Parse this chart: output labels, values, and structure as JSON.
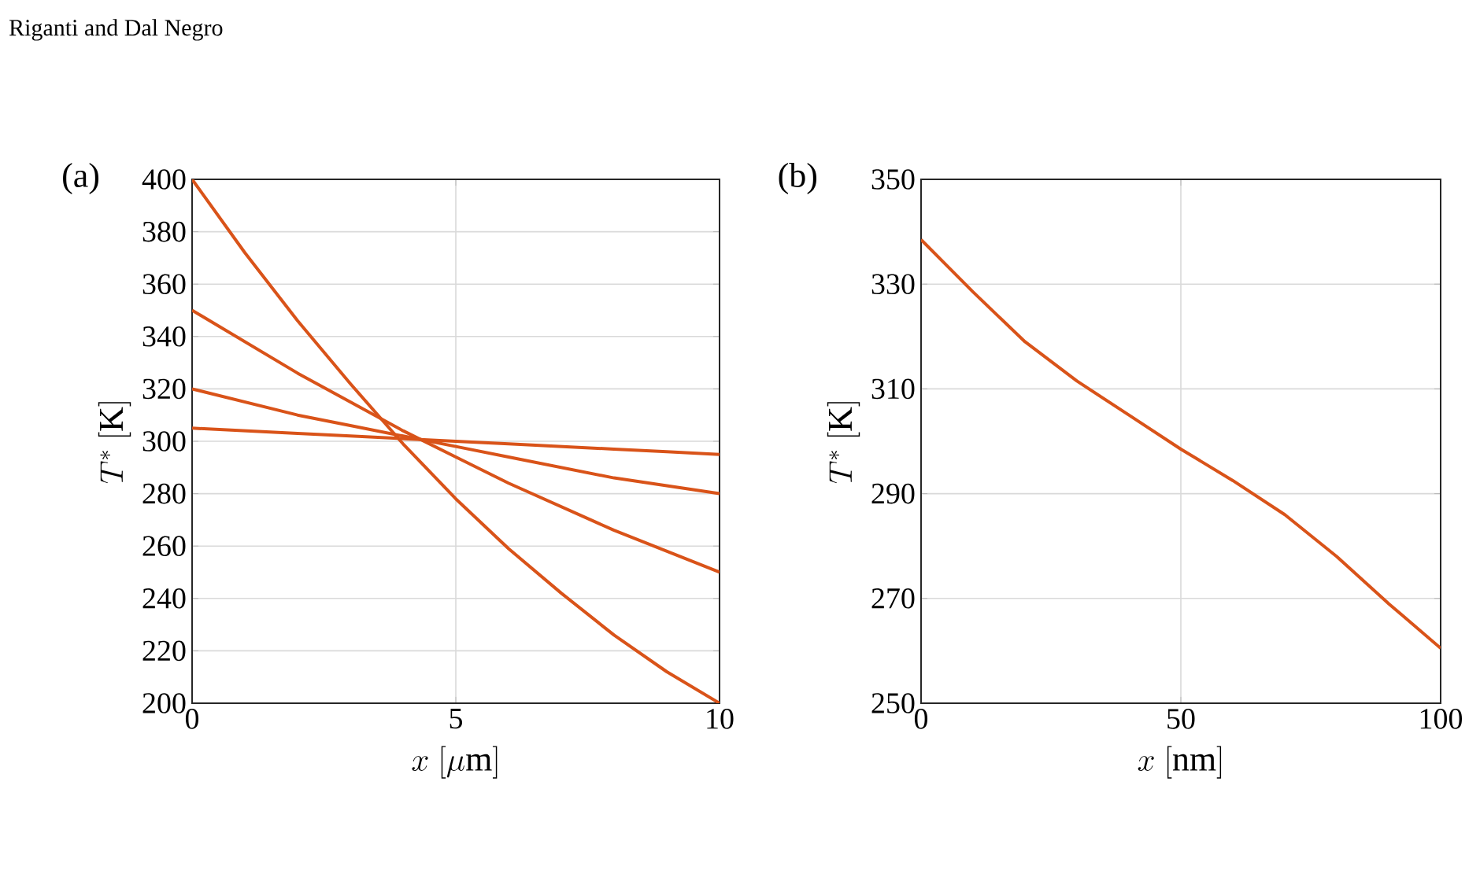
{
  "chart_data": [
    {
      "type": "line",
      "title": "(a)",
      "xlabel": "x\\ [\\mu\\mathrm{m}]",
      "ylabel": "T^{*}\\ [\\mathrm{K}]",
      "annotations": [
        "Riganti and Dal Negro"
      ],
      "x": [
        0,
        1,
        2,
        3,
        4,
        5,
        6,
        7,
        8,
        9,
        10
      ],
      "series": [
        {
          "color": "#d95319",
          "values": [
            400,
            372,
            346,
            322,
            299,
            278,
            259,
            242,
            226,
            212,
            200
          ]
        },
        {
          "color": "#d95319",
          "values": [
            350,
            338,
            326,
            315,
            304,
            294,
            284,
            275,
            266,
            258,
            250
          ]
        },
        {
          "color": "#d95319",
          "values": [
            320,
            315,
            310,
            306,
            302,
            298,
            294,
            290,
            286,
            283,
            280
          ]
        },
        {
          "color": "#d95319",
          "values": [
            305,
            304,
            303,
            302,
            301,
            300,
            299,
            298,
            297,
            296,
            295
          ]
        }
      ],
      "xlim": [
        0,
        10
      ],
      "xticks": [
        0,
        5,
        10
      ],
      "ylim": [
        200,
        400
      ],
      "yticks": [
        200,
        220,
        240,
        260,
        280,
        300,
        320,
        340,
        360,
        380,
        400
      ],
      "grid": true,
      "line_style": "solid"
    },
    {
      "type": "line",
      "title": "(b)",
      "xlabel": "x\\ [\\mathrm{nm}]",
      "ylabel": "T^{*}\\ [\\mathrm{K}]",
      "x": [
        0,
        10,
        20,
        30,
        40,
        50,
        60,
        70,
        80,
        90,
        100
      ],
      "series": [
        {
          "color": "#d95319",
          "values": [
            338.5,
            328.5,
            319,
            311.5,
            305,
            298.5,
            292.5,
            286,
            278,
            269,
            260.5
          ]
        }
      ],
      "xlim": [
        0,
        100
      ],
      "xticks": [
        0,
        50,
        100
      ],
      "ylim": [
        250,
        350
      ],
      "yticks": [
        250,
        270,
        290,
        310,
        330,
        350
      ],
      "grid": true,
      "line_style": "solid"
    }
  ]
}
